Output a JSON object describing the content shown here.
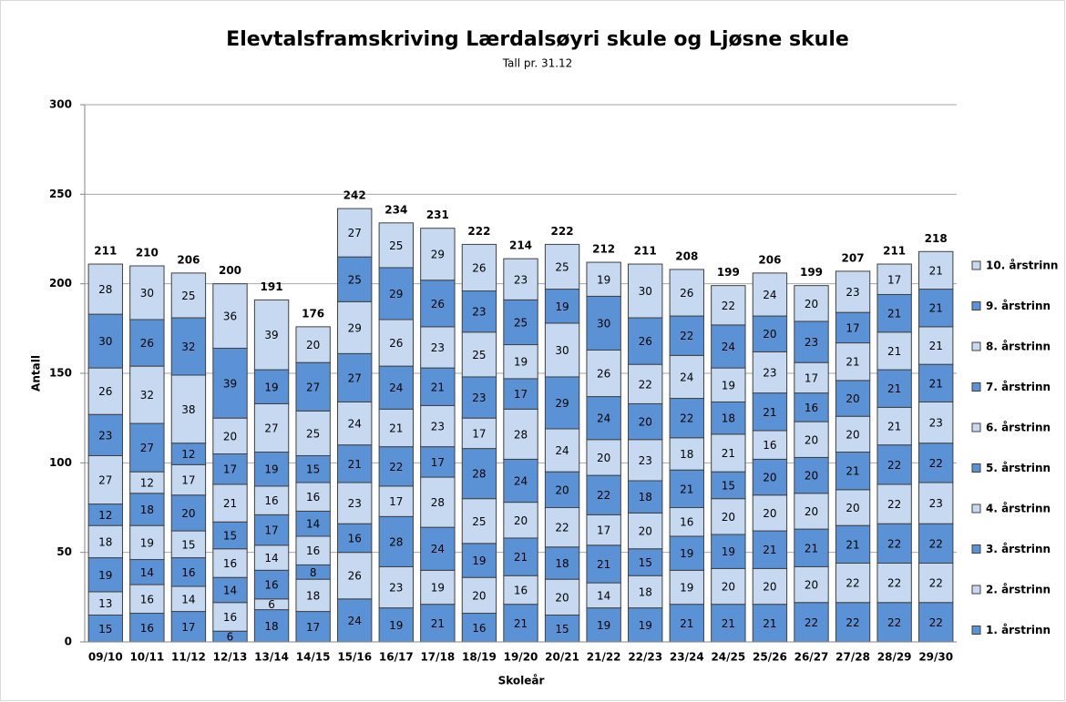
{
  "chart_data": {
    "type": "stacked_bar",
    "title": "Elevtalsframskriving Lærdalsøyri skule og Ljøsne skule",
    "subtitle": "Tall pr. 31.12",
    "x_label": "Skoleår",
    "y_label": "Antall",
    "categories": [
      "09/10",
      "10/11",
      "11/12",
      "12/13",
      "13/14",
      "14/15",
      "15/16",
      "16/17",
      "17/18",
      "18/19",
      "19/20",
      "20/21",
      "21/22",
      "22/23",
      "23/24",
      "24/25",
      "25/26",
      "26/27",
      "27/28",
      "28/29",
      "29/30"
    ],
    "totals": [
      211,
      210,
      206,
      200,
      191,
      176,
      242,
      234,
      231,
      222,
      214,
      222,
      212,
      211,
      208,
      199,
      206,
      199,
      207,
      211,
      218
    ],
    "ylim": [
      0,
      300
    ],
    "yticks": [
      0,
      50,
      100,
      150,
      200,
      250,
      300
    ],
    "grid": true,
    "legend": "right",
    "series": [
      {
        "name": "1. årstrinn",
        "color": "#5b92d6",
        "values": [
          15,
          16,
          17,
          6,
          18,
          17,
          24,
          19,
          21,
          16,
          21,
          15,
          19,
          19,
          21,
          21,
          21,
          22,
          22,
          22,
          22
        ]
      },
      {
        "name": "2. årstrinn",
        "color": "#c6d9f1",
        "values": [
          13,
          16,
          14,
          16,
          6,
          18,
          26,
          23,
          19,
          20,
          16,
          20,
          14,
          18,
          19,
          20,
          20,
          20,
          22,
          22,
          22
        ]
      },
      {
        "name": "3. årstrinn",
        "color": "#5b92d6",
        "values": [
          19,
          14,
          16,
          14,
          16,
          8,
          16,
          28,
          24,
          19,
          21,
          18,
          21,
          15,
          19,
          19,
          21,
          21,
          21,
          22,
          22
        ]
      },
      {
        "name": "4. årstrinn",
        "color": "#c6d9f1",
        "values": [
          18,
          19,
          15,
          16,
          14,
          16,
          23,
          17,
          28,
          25,
          20,
          22,
          17,
          20,
          16,
          20,
          20,
          20,
          20,
          22,
          23
        ]
      },
      {
        "name": "5. årstrinn",
        "color": "#5b92d6",
        "values": [
          12,
          18,
          20,
          15,
          17,
          14,
          21,
          22,
          17,
          28,
          24,
          20,
          22,
          18,
          21,
          15,
          20,
          20,
          21,
          22,
          22
        ]
      },
      {
        "name": "6. årstrinn",
        "color": "#c6d9f1",
        "values": [
          27,
          12,
          17,
          21,
          16,
          16,
          24,
          21,
          23,
          17,
          28,
          24,
          20,
          23,
          18,
          21,
          16,
          20,
          20,
          21,
          23
        ]
      },
      {
        "name": "7. årstrinn",
        "color": "#5b92d6",
        "values": [
          23,
          27,
          12,
          17,
          19,
          15,
          27,
          24,
          21,
          23,
          17,
          29,
          24,
          20,
          22,
          18,
          21,
          16,
          20,
          21,
          21
        ]
      },
      {
        "name": "8. årstrinn",
        "color": "#c6d9f1",
        "values": [
          26,
          32,
          38,
          20,
          27,
          25,
          29,
          26,
          23,
          25,
          19,
          30,
          26,
          22,
          24,
          19,
          23,
          17,
          21,
          21,
          21
        ]
      },
      {
        "name": "9. årstrinn",
        "color": "#5b92d6",
        "values": [
          30,
          26,
          32,
          39,
          19,
          27,
          25,
          29,
          26,
          23,
          25,
          19,
          30,
          26,
          22,
          24,
          20,
          23,
          17,
          21,
          21
        ]
      },
      {
        "name": "10. årstrinn",
        "color": "#c6d9f1",
        "values": [
          28,
          30,
          25,
          36,
          39,
          20,
          27,
          25,
          29,
          26,
          23,
          25,
          19,
          30,
          26,
          22,
          24,
          20,
          23,
          17,
          21
        ]
      }
    ]
  }
}
